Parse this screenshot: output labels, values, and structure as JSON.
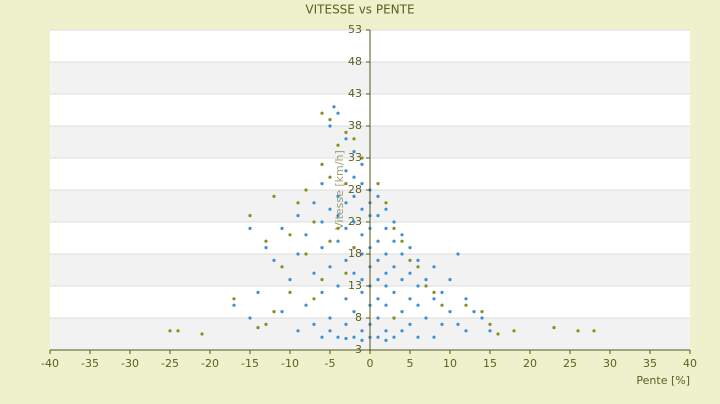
{
  "chart_data": {
    "type": "scatter",
    "title": "VITESSE vs PENTE",
    "x_label": "Pente [%]",
    "y_label": "Vitesse [km/h]",
    "xlim": [
      -40,
      40
    ],
    "xticks": [
      -40,
      -35,
      -30,
      -25,
      -20,
      -15,
      -10,
      -5,
      0,
      5,
      10,
      15,
      20,
      25,
      30,
      35,
      40
    ],
    "ylim": [
      3,
      53
    ],
    "yticks": [
      3,
      8,
      13,
      18,
      23,
      28,
      33,
      38,
      43,
      48,
      53
    ],
    "grid": true,
    "series": [
      {
        "color": "#3d8fd4",
        "x": [
          -4.5,
          -4,
          -5,
          -3,
          -2,
          -1,
          -3,
          -2,
          -6,
          -1,
          0,
          -4,
          -2,
          1,
          -7,
          -3,
          0,
          2,
          -5,
          -1,
          -9,
          -4,
          0,
          1,
          3,
          -2,
          -6,
          -15,
          -11,
          -3,
          0,
          2,
          4,
          -1,
          -8,
          1,
          -4,
          3,
          -13,
          -6,
          -2,
          0,
          5,
          2,
          -1,
          -9,
          4,
          11,
          -3,
          1,
          6,
          -12,
          -5,
          0,
          3,
          8,
          -2,
          2,
          5,
          -7,
          -1,
          1,
          4,
          7,
          10,
          -10,
          -4,
          0,
          2,
          6,
          -14,
          -6,
          -1,
          3,
          9,
          1,
          5,
          -3,
          8,
          12,
          -17,
          -8,
          0,
          2,
          6,
          -2,
          4,
          10,
          13,
          -11,
          1,
          -5,
          3,
          7,
          14,
          -15,
          0,
          -3,
          5,
          9,
          11,
          -7,
          2,
          -1,
          4,
          12,
          15,
          -9,
          -5,
          0,
          -2,
          1,
          3,
          -4,
          -6,
          -1,
          2,
          6,
          8,
          -3
        ],
        "values": [
          41,
          40,
          38,
          36,
          34,
          32,
          31,
          30,
          29,
          29,
          28,
          27,
          27,
          27,
          26,
          26,
          26,
          25,
          25,
          25,
          24,
          24,
          24,
          24,
          23,
          23,
          23,
          22,
          22,
          22,
          22,
          22,
          21,
          21,
          21,
          20,
          20,
          20,
          19,
          19,
          19,
          19,
          19,
          18,
          18,
          18,
          18,
          18,
          17,
          17,
          17,
          17,
          16,
          16,
          16,
          16,
          15,
          15,
          15,
          15,
          14,
          14,
          14,
          14,
          14,
          14,
          13,
          13,
          13,
          13,
          12,
          12,
          12,
          12,
          12,
          11,
          11,
          11,
          11,
          11,
          10,
          10,
          10,
          10,
          10,
          9,
          9,
          9,
          9,
          9,
          8,
          8,
          8,
          8,
          8,
          8,
          7,
          7,
          7,
          7,
          7,
          7,
          6,
          6,
          6,
          6,
          6,
          6,
          6,
          5,
          5,
          5,
          5,
          5,
          5,
          4.5,
          4.5,
          5,
          5,
          4.8
        ]
      },
      {
        "color": "#8c8c1e",
        "x": [
          -25,
          -24,
          -21,
          -14,
          -13,
          -12,
          -10,
          -6,
          -5,
          -3,
          -2,
          -4,
          -1,
          -6,
          -5,
          -3,
          -8,
          -12,
          -9,
          -15,
          -7,
          -4,
          -10,
          -5,
          -13,
          -2,
          -8,
          -11,
          -3,
          -6,
          1,
          2,
          3,
          4,
          5,
          6,
          8,
          9,
          12,
          14,
          15,
          18,
          23,
          26,
          28,
          16,
          -17,
          -7,
          7,
          3
        ],
        "values": [
          6,
          6,
          5.5,
          6.5,
          7,
          9,
          12,
          40,
          39,
          37,
          36,
          35,
          33,
          32,
          30,
          29,
          28,
          27,
          26,
          24,
          23,
          22,
          21,
          20,
          20,
          19,
          18,
          16,
          15,
          14,
          29,
          26,
          22,
          20,
          17,
          16,
          12,
          10,
          10,
          9,
          7,
          6,
          6.5,
          6,
          6,
          5.5,
          11,
          11,
          13,
          8
        ]
      }
    ]
  }
}
